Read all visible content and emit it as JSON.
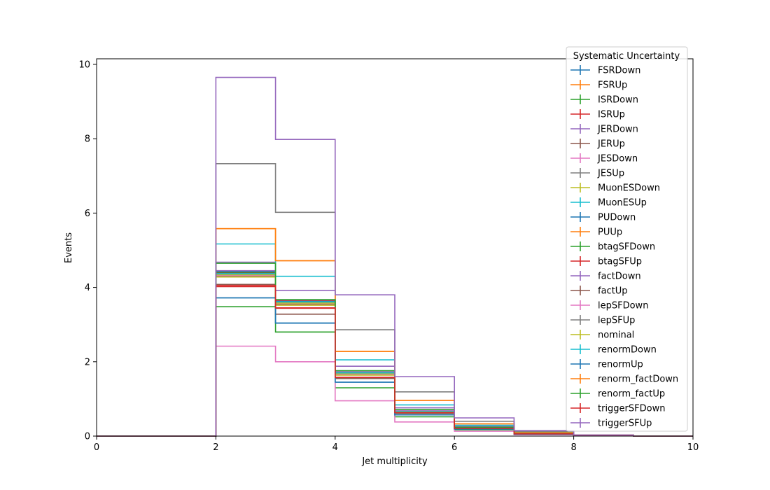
{
  "chart_data": {
    "type": "line",
    "style": "step-histogram",
    "xlabel": "Jet multiplicity",
    "ylabel": "Events",
    "xlim": [
      0,
      10
    ],
    "ylim": [
      0,
      10.15
    ],
    "xticks": [
      "0",
      "2",
      "4",
      "6",
      "8",
      "10"
    ],
    "yticks": [
      "0",
      "2",
      "4",
      "6",
      "8",
      "10"
    ],
    "grid": false,
    "legend_title": "Systematic Uncertainty",
    "legend_position": "top-right",
    "bin_edges": [
      0,
      1,
      2,
      3,
      4,
      5,
      6,
      7,
      8,
      9,
      10
    ],
    "series": [
      {
        "name": "FSRDown",
        "color": "#1f77b4",
        "values": [
          0,
          0,
          4.43,
          3.62,
          1.7,
          0.66,
          0.22,
          0.06,
          0.02,
          0,
          0
        ]
      },
      {
        "name": "FSRUp",
        "color": "#ff7f0e",
        "values": [
          0,
          0,
          4.35,
          3.58,
          1.68,
          0.65,
          0.21,
          0.06,
          0.02,
          0,
          0
        ]
      },
      {
        "name": "ISRDown",
        "color": "#2ca02c",
        "values": [
          0,
          0,
          4.4,
          3.6,
          1.69,
          0.66,
          0.22,
          0.06,
          0.02,
          0,
          0
        ]
      },
      {
        "name": "ISRUp",
        "color": "#d62728",
        "values": [
          0,
          0,
          4.38,
          3.65,
          1.72,
          0.67,
          0.22,
          0.06,
          0.02,
          0,
          0
        ]
      },
      {
        "name": "JERDown",
        "color": "#9467bd",
        "values": [
          0,
          0,
          4.45,
          3.66,
          1.73,
          0.68,
          0.23,
          0.07,
          0.02,
          0,
          0
        ]
      },
      {
        "name": "JERUp",
        "color": "#8c564b",
        "values": [
          0,
          0,
          4.3,
          3.55,
          1.66,
          0.64,
          0.21,
          0.06,
          0.02,
          0,
          0
        ]
      },
      {
        "name": "JESDown",
        "color": "#e377c2",
        "values": [
          0,
          0,
          4.32,
          3.57,
          1.67,
          0.65,
          0.21,
          0.06,
          0.02,
          0,
          0
        ]
      },
      {
        "name": "JESUp",
        "color": "#7f7f7f",
        "values": [
          0,
          0,
          4.36,
          3.59,
          1.71,
          0.66,
          0.22,
          0.06,
          0.02,
          0,
          0
        ]
      },
      {
        "name": "MuonESDown",
        "color": "#bcbd22",
        "values": [
          0,
          0,
          4.34,
          3.58,
          1.69,
          0.65,
          0.22,
          0.06,
          0.02,
          0,
          0
        ]
      },
      {
        "name": "MuonESUp",
        "color": "#17becf",
        "values": [
          0,
          0,
          4.37,
          3.61,
          1.7,
          0.66,
          0.22,
          0.06,
          0.02,
          0,
          0
        ]
      },
      {
        "name": "PUDown",
        "color": "#1f77b4",
        "values": [
          0,
          0,
          3.72,
          3.04,
          1.45,
          0.57,
          0.19,
          0.05,
          0.02,
          0,
          0
        ]
      },
      {
        "name": "PUUp",
        "color": "#ff7f0e",
        "values": [
          0,
          0,
          5.58,
          4.72,
          2.28,
          0.96,
          0.33,
          0.09,
          0.03,
          0,
          0
        ]
      },
      {
        "name": "btagSFDown",
        "color": "#2ca02c",
        "values": [
          0,
          0,
          3.48,
          2.8,
          1.3,
          0.52,
          0.17,
          0.05,
          0.01,
          0,
          0
        ]
      },
      {
        "name": "btagSFUp",
        "color": "#d62728",
        "values": [
          0,
          0,
          4.02,
          3.44,
          1.56,
          0.62,
          0.21,
          0.06,
          0.02,
          0,
          0
        ]
      },
      {
        "name": "factDown",
        "color": "#9467bd",
        "values": [
          0,
          0,
          4.68,
          3.92,
          1.88,
          0.76,
          0.26,
          0.07,
          0.02,
          0,
          0
        ]
      },
      {
        "name": "factUp",
        "color": "#8c564b",
        "values": [
          0,
          0,
          4.08,
          3.28,
          1.55,
          0.61,
          0.2,
          0.06,
          0.02,
          0,
          0
        ]
      },
      {
        "name": "lepSFDown",
        "color": "#e377c2",
        "values": [
          0,
          0,
          2.42,
          2.0,
          0.95,
          0.38,
          0.13,
          0.04,
          0.01,
          0,
          0
        ]
      },
      {
        "name": "lepSFUp",
        "color": "#7f7f7f",
        "values": [
          0,
          0,
          7.33,
          6.02,
          2.86,
          1.19,
          0.4,
          0.12,
          0.03,
          0,
          0
        ]
      },
      {
        "name": "nominal",
        "color": "#bcbd22",
        "values": [
          0,
          0,
          4.28,
          3.52,
          1.64,
          0.64,
          0.21,
          0.06,
          0.02,
          0,
          0
        ]
      },
      {
        "name": "renormDown",
        "color": "#17becf",
        "values": [
          0,
          0,
          5.17,
          4.3,
          2.05,
          0.84,
          0.29,
          0.08,
          0.02,
          0,
          0
        ]
      },
      {
        "name": "renormUp",
        "color": "#1f77b4",
        "values": [
          0,
          0,
          3.72,
          3.04,
          1.45,
          0.57,
          0.19,
          0.05,
          0.02,
          0,
          0
        ]
      },
      {
        "name": "renorm_factDown",
        "color": "#ff7f0e",
        "values": [
          0,
          0,
          5.58,
          4.72,
          2.28,
          0.96,
          0.33,
          0.09,
          0.03,
          0,
          0
        ]
      },
      {
        "name": "renorm_factUp",
        "color": "#2ca02c",
        "values": [
          0,
          0,
          4.65,
          3.67,
          1.76,
          0.72,
          0.24,
          0.07,
          0.02,
          0,
          0
        ]
      },
      {
        "name": "triggerSFDown",
        "color": "#d62728",
        "values": [
          0,
          0,
          4.05,
          3.45,
          1.58,
          0.63,
          0.21,
          0.06,
          0.02,
          0,
          0
        ]
      },
      {
        "name": "triggerSFUp",
        "color": "#9467bd",
        "values": [
          0,
          0,
          9.65,
          7.98,
          3.8,
          1.6,
          0.49,
          0.15,
          0.03,
          0,
          0
        ]
      }
    ]
  }
}
